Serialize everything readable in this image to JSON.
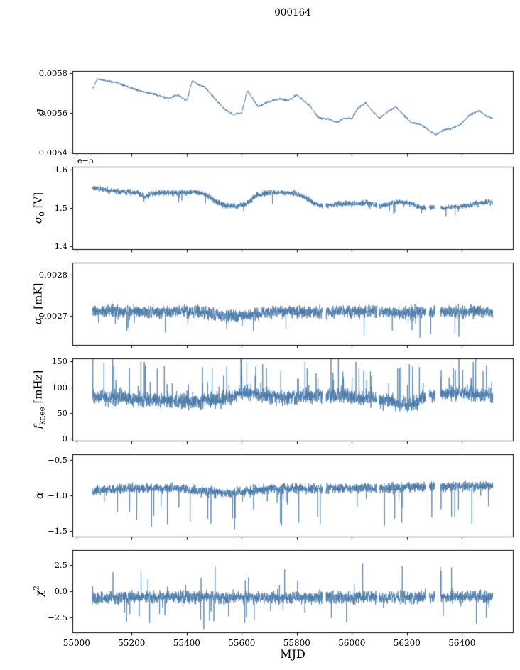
{
  "figure": {
    "title": "000164",
    "xlabel": "MJD",
    "background": "#ffffff",
    "line_color": "#4878a8",
    "axis_color": "#000000"
  },
  "chart_data": {
    "type": "line",
    "title": "000164",
    "xlabel": "MJD",
    "x_range": [
      55058,
      56512
    ],
    "xlim": [
      54985,
      56585
    ],
    "x_ticks": [
      55000,
      55200,
      55400,
      55600,
      55800,
      56000,
      56200,
      56400
    ],
    "x_tick_labels": [
      "55000",
      "55200",
      "55400",
      "55600",
      "55800",
      "56000",
      "56200",
      "56400"
    ],
    "panels": [
      {
        "name": "g",
        "ylabel": {
          "pre": "g",
          "sub": "",
          "sup": "",
          "post": ""
        },
        "ylim": [
          0.005395,
          0.00581
        ],
        "y_ticks": [
          0.0054,
          0.0056,
          0.0058
        ],
        "y_tick_labels": [
          "0.0054",
          "0.0056",
          "0.0058"
        ],
        "offset_text": "",
        "noise_amp": 8e-06,
        "points": 1600,
        "line_width": 1.0,
        "seed": 11,
        "tail": {
          "prob": 0,
          "sign": 0,
          "lo": 0,
          "hi": 0
        },
        "gaps": [],
        "baseline": [
          [
            55058,
            0.00572
          ],
          [
            55075,
            0.00577
          ],
          [
            55110,
            0.00576
          ],
          [
            55150,
            0.00575
          ],
          [
            55230,
            0.00571
          ],
          [
            55290,
            0.00569
          ],
          [
            55335,
            0.00567
          ],
          [
            55365,
            0.00569
          ],
          [
            55400,
            0.00566
          ],
          [
            55420,
            0.00576
          ],
          [
            55445,
            0.00574
          ],
          [
            55465,
            0.00573
          ],
          [
            55515,
            0.00565
          ],
          [
            55545,
            0.00561
          ],
          [
            55570,
            0.00559
          ],
          [
            55600,
            0.0056
          ],
          [
            55620,
            0.00571
          ],
          [
            55645,
            0.00566
          ],
          [
            55660,
            0.00563
          ],
          [
            55690,
            0.00565
          ],
          [
            55710,
            0.00566
          ],
          [
            55740,
            0.00567
          ],
          [
            55770,
            0.00566
          ],
          [
            55800,
            0.00569
          ],
          [
            55825,
            0.00566
          ],
          [
            55850,
            0.00563
          ],
          [
            55875,
            0.00558
          ],
          [
            55890,
            0.00557
          ],
          [
            55915,
            0.00557
          ],
          [
            55945,
            0.00555
          ],
          [
            55970,
            0.00557
          ],
          [
            56000,
            0.00557
          ],
          [
            56020,
            0.00562
          ],
          [
            56050,
            0.00565
          ],
          [
            56080,
            0.0056
          ],
          [
            56100,
            0.00557
          ],
          [
            56135,
            0.00561
          ],
          [
            56160,
            0.00563
          ],
          [
            56180,
            0.0056
          ],
          [
            56215,
            0.00555
          ],
          [
            56250,
            0.00554
          ],
          [
            56280,
            0.00551
          ],
          [
            56305,
            0.00549
          ],
          [
            56330,
            0.00551
          ],
          [
            56360,
            0.00552
          ],
          [
            56395,
            0.00554
          ],
          [
            56430,
            0.00559
          ],
          [
            56465,
            0.00561
          ],
          [
            56490,
            0.00558
          ],
          [
            56512,
            0.00557
          ]
        ]
      },
      {
        "name": "sigma0_V",
        "ylabel": {
          "pre": "σ",
          "sub": "0",
          "sup": "",
          "post": " [V]"
        },
        "ylim": [
          1.392,
          1.608
        ],
        "y_ticks": [
          1.4,
          1.5,
          1.6
        ],
        "y_tick_labels": [
          "1.4",
          "1.5",
          "1.6"
        ],
        "offset_text": "1e−5",
        "noise_amp": 0.011,
        "points": 2600,
        "line_width": 0.8,
        "seed": 22,
        "tail": {
          "prob": 0.008,
          "sign": -1,
          "lo": 0.5,
          "hi": 2.0
        },
        "gaps": [
          [
            55893,
            55906
          ],
          [
            56092,
            56099
          ],
          [
            56268,
            56281
          ],
          [
            56302,
            56322
          ]
        ],
        "baseline": [
          [
            55058,
            1.555
          ],
          [
            55100,
            1.548
          ],
          [
            55160,
            1.542
          ],
          [
            55220,
            1.54
          ],
          [
            55250,
            1.528
          ],
          [
            55270,
            1.538
          ],
          [
            55320,
            1.54
          ],
          [
            55380,
            1.54
          ],
          [
            55430,
            1.542
          ],
          [
            55470,
            1.535
          ],
          [
            55510,
            1.515
          ],
          [
            55545,
            1.505
          ],
          [
            55580,
            1.505
          ],
          [
            55615,
            1.51
          ],
          [
            55650,
            1.532
          ],
          [
            55700,
            1.54
          ],
          [
            55750,
            1.54
          ],
          [
            55800,
            1.538
          ],
          [
            55830,
            1.528
          ],
          [
            55870,
            1.51
          ],
          [
            55900,
            1.505
          ],
          [
            55940,
            1.51
          ],
          [
            55980,
            1.512
          ],
          [
            56020,
            1.51
          ],
          [
            56060,
            1.515
          ],
          [
            56100,
            1.505
          ],
          [
            56140,
            1.512
          ],
          [
            56180,
            1.515
          ],
          [
            56220,
            1.51
          ],
          [
            56255,
            1.5
          ],
          [
            56290,
            1.503
          ],
          [
            56330,
            1.5
          ],
          [
            56370,
            1.503
          ],
          [
            56410,
            1.505
          ],
          [
            56450,
            1.51
          ],
          [
            56490,
            1.515
          ],
          [
            56512,
            1.515
          ]
        ]
      },
      {
        "name": "sigma0_mK",
        "ylabel": {
          "pre": "σ",
          "sub": "0",
          "sup": "",
          "post": " [mK]"
        },
        "ylim": [
          0.00263,
          0.00283
        ],
        "y_ticks": [
          0.0027,
          0.0028
        ],
        "y_tick_labels": [
          "0.0027",
          "0.0028"
        ],
        "offset_text": "",
        "noise_amp": 2.2e-05,
        "points": 2600,
        "line_width": 0.8,
        "seed": 33,
        "tail": {
          "prob": 0.012,
          "sign": -1,
          "lo": 0.5,
          "hi": 2.0
        },
        "gaps": [
          [
            55893,
            55906
          ],
          [
            56092,
            56099
          ],
          [
            56268,
            56281
          ],
          [
            56302,
            56322
          ]
        ],
        "baseline": [
          [
            55058,
            0.002712
          ],
          [
            55200,
            0.002712
          ],
          [
            55300,
            0.00271
          ],
          [
            55420,
            0.002712
          ],
          [
            55480,
            0.002705
          ],
          [
            55560,
            0.0027
          ],
          [
            55640,
            0.002703
          ],
          [
            55700,
            0.00271
          ],
          [
            55760,
            0.002712
          ],
          [
            55820,
            0.00271
          ],
          [
            55900,
            0.002708
          ],
          [
            55960,
            0.002712
          ],
          [
            56040,
            0.00271
          ],
          [
            56120,
            0.00271
          ],
          [
            56200,
            0.002708
          ],
          [
            56280,
            0.002712
          ],
          [
            56360,
            0.00271
          ],
          [
            56440,
            0.002712
          ],
          [
            56512,
            0.00271
          ]
        ]
      },
      {
        "name": "f_knee",
        "ylabel": {
          "pre": "f",
          "sub": "knee",
          "sup": "",
          "post": " [mHz]"
        },
        "ylim": [
          -4,
          156
        ],
        "y_ticks": [
          0,
          50,
          100,
          150
        ],
        "y_tick_labels": [
          "0",
          "50",
          "100",
          "150"
        ],
        "offset_text": "",
        "noise_amp": 22,
        "points": 2600,
        "line_width": 0.8,
        "seed": 44,
        "tail": {
          "prob": 0.035,
          "sign": 1,
          "lo": 0.8,
          "hi": 2.5
        },
        "gaps": [
          [
            55893,
            55906
          ],
          [
            56092,
            56099
          ],
          [
            56268,
            56281
          ],
          [
            56302,
            56322
          ]
        ],
        "baseline": [
          [
            55058,
            82
          ],
          [
            55150,
            80
          ],
          [
            55250,
            76
          ],
          [
            55350,
            74
          ],
          [
            55450,
            72
          ],
          [
            55550,
            78
          ],
          [
            55610,
            92
          ],
          [
            55660,
            85
          ],
          [
            55750,
            80
          ],
          [
            55850,
            84
          ],
          [
            55950,
            85
          ],
          [
            56050,
            80
          ],
          [
            56150,
            72
          ],
          [
            56210,
            65
          ],
          [
            56260,
            80
          ],
          [
            56330,
            88
          ],
          [
            56400,
            90
          ],
          [
            56460,
            86
          ],
          [
            56512,
            82
          ]
        ]
      },
      {
        "name": "alpha",
        "ylabel": {
          "pre": "α",
          "sub": "",
          "sup": "",
          "post": ""
        },
        "ylim": [
          -1.58,
          -0.42
        ],
        "y_ticks": [
          -0.5,
          -1.0,
          -1.5
        ],
        "y_tick_labels": [
          "−0.5",
          "−1.0",
          "−1.5"
        ],
        "offset_text": "",
        "noise_amp": 0.1,
        "points": 2600,
        "line_width": 0.8,
        "seed": 55,
        "tail": {
          "prob": 0.02,
          "sign": -1,
          "lo": 1.0,
          "hi": 4.5
        },
        "gaps": [
          [
            55893,
            55906
          ],
          [
            56092,
            56099
          ],
          [
            56268,
            56281
          ],
          [
            56302,
            56322
          ]
        ],
        "baseline": [
          [
            55058,
            -0.93
          ],
          [
            55200,
            -0.9
          ],
          [
            55350,
            -0.9
          ],
          [
            55480,
            -0.95
          ],
          [
            55560,
            -0.97
          ],
          [
            55650,
            -0.92
          ],
          [
            55800,
            -0.9
          ],
          [
            55950,
            -0.9
          ],
          [
            56100,
            -0.9
          ],
          [
            56250,
            -0.88
          ],
          [
            56400,
            -0.87
          ],
          [
            56512,
            -0.87
          ]
        ]
      },
      {
        "name": "chi2",
        "ylabel": {
          "pre": "χ",
          "sub": "",
          "sup": "2",
          "post": ""
        },
        "ylim": [
          -3.9,
          3.9
        ],
        "y_ticks": [
          2.5,
          0.0,
          -2.5
        ],
        "y_tick_labels": [
          "2.5",
          "0.0",
          "−2.5"
        ],
        "offset_text": "",
        "noise_amp": 0.85,
        "points": 2600,
        "line_width": 0.8,
        "seed": 66,
        "tail": {
          "prob": 0.025,
          "sign": 0,
          "lo": 0.5,
          "hi": 2.8
        },
        "gaps": [
          [
            55893,
            55906
          ],
          [
            56092,
            56099
          ],
          [
            56268,
            56281
          ],
          [
            56302,
            56322
          ]
        ],
        "baseline": [
          [
            55058,
            -0.6
          ],
          [
            55300,
            -0.55
          ],
          [
            55600,
            -0.6
          ],
          [
            55900,
            -0.6
          ],
          [
            56200,
            -0.55
          ],
          [
            56512,
            -0.55
          ]
        ]
      }
    ]
  }
}
